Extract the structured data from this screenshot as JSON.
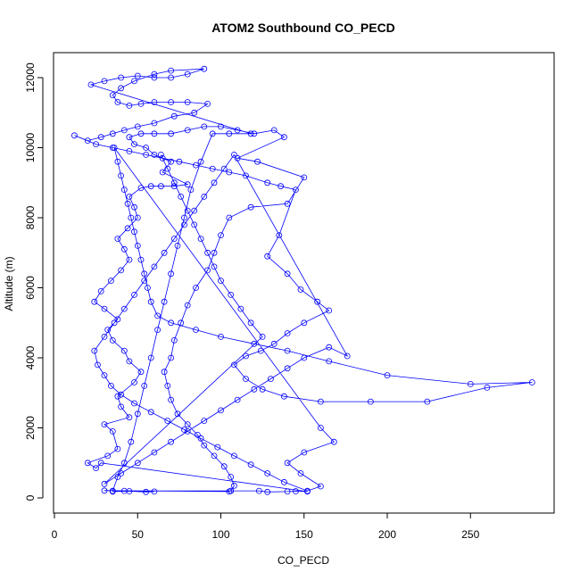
{
  "chart_data": {
    "type": "line",
    "title": "ATOM2 Southbound CO_PECD",
    "xlabel": "CO_PECD",
    "ylabel": "Altitude (m)",
    "xlim": [
      0,
      300
    ],
    "ylim": [
      0,
      12500
    ],
    "xticks": [
      0,
      50,
      100,
      150,
      200,
      250
    ],
    "yticks": [
      0,
      2000,
      4000,
      6000,
      8000,
      10000,
      12000
    ],
    "grid": false,
    "legend": "none",
    "series_color": "#0000ff",
    "points": [
      [
        35,
        180
      ],
      [
        45,
        190
      ],
      [
        60,
        180
      ],
      [
        55,
        170
      ],
      [
        42,
        200
      ],
      [
        30,
        210
      ],
      [
        105,
        180
      ],
      [
        106,
        200
      ],
      [
        123,
        200
      ],
      [
        128,
        170
      ],
      [
        140,
        180
      ],
      [
        145,
        190
      ],
      [
        152,
        180
      ],
      [
        28,
        1000
      ],
      [
        25,
        850
      ],
      [
        20,
        1000
      ],
      [
        32,
        1200
      ],
      [
        38,
        1400
      ],
      [
        35,
        1900
      ],
      [
        30,
        2100
      ],
      [
        45,
        2300
      ],
      [
        40,
        2600
      ],
      [
        38,
        2900
      ],
      [
        48,
        3300
      ],
      [
        52,
        3600
      ],
      [
        45,
        3900
      ],
      [
        42,
        4200
      ],
      [
        35,
        4500
      ],
      [
        32,
        4800
      ],
      [
        38,
        5100
      ],
      [
        30,
        5400
      ],
      [
        24,
        5600
      ],
      [
        28,
        5900
      ],
      [
        34,
        6200
      ],
      [
        40,
        6500
      ],
      [
        45,
        6800
      ],
      [
        42,
        7100
      ],
      [
        38,
        7400
      ],
      [
        44,
        7700
      ],
      [
        50,
        8000
      ],
      [
        48,
        8300
      ],
      [
        45,
        8600
      ],
      [
        52,
        8850
      ],
      [
        58,
        8900
      ],
      [
        64,
        8900
      ],
      [
        72,
        8900
      ],
      [
        80,
        8950
      ],
      [
        65,
        9300
      ],
      [
        70,
        9600
      ],
      [
        60,
        9800
      ],
      [
        55,
        10000
      ],
      [
        48,
        10100
      ],
      [
        45,
        10300
      ],
      [
        52,
        10400
      ],
      [
        60,
        10400
      ],
      [
        70,
        10400
      ],
      [
        80,
        10500
      ],
      [
        90,
        10600
      ],
      [
        100,
        10600
      ],
      [
        110,
        10500
      ],
      [
        120,
        10400
      ],
      [
        132,
        10500
      ],
      [
        138,
        10300
      ],
      [
        110,
        9700
      ],
      [
        122,
        9600
      ],
      [
        150,
        9150
      ],
      [
        140,
        8400
      ],
      [
        118,
        8300
      ],
      [
        105,
        8000
      ],
      [
        100,
        7500
      ],
      [
        96,
        7000
      ],
      [
        92,
        6500
      ],
      [
        85,
        6000
      ],
      [
        80,
        5500
      ],
      [
        76,
        5000
      ],
      [
        72,
        4500
      ],
      [
        70,
        4000
      ],
      [
        66,
        3600
      ],
      [
        68,
        3200
      ],
      [
        70,
        2800
      ],
      [
        74,
        2400
      ],
      [
        80,
        2100
      ],
      [
        86,
        1800
      ],
      [
        90,
        1500
      ],
      [
        96,
        1200
      ],
      [
        102,
        900
      ],
      [
        106,
        600
      ],
      [
        108,
        350
      ],
      [
        106,
        200
      ],
      [
        35,
        200
      ],
      [
        38,
        600
      ],
      [
        42,
        1000
      ],
      [
        46,
        1600
      ],
      [
        50,
        2400
      ],
      [
        54,
        3200
      ],
      [
        58,
        4000
      ],
      [
        62,
        4800
      ],
      [
        66,
        5600
      ],
      [
        70,
        6400
      ],
      [
        74,
        7200
      ],
      [
        78,
        8000
      ],
      [
        82,
        8800
      ],
      [
        88,
        9600
      ],
      [
        95,
        10400
      ],
      [
        105,
        10400
      ],
      [
        118,
        10400
      ],
      [
        22,
        11800
      ],
      [
        30,
        11900
      ],
      [
        40,
        12000
      ],
      [
        50,
        12050
      ],
      [
        60,
        12000
      ],
      [
        70,
        12000
      ],
      [
        80,
        12100
      ],
      [
        90,
        12250
      ],
      [
        70,
        12200
      ],
      [
        60,
        12100
      ],
      [
        48,
        11900
      ],
      [
        40,
        11700
      ],
      [
        35,
        11500
      ],
      [
        38,
        11300
      ],
      [
        45,
        11200
      ],
      [
        52,
        11250
      ],
      [
        60,
        11300
      ],
      [
        70,
        11300
      ],
      [
        80,
        11300
      ],
      [
        92,
        11250
      ],
      [
        84,
        11000
      ],
      [
        72,
        10900
      ],
      [
        60,
        10700
      ],
      [
        50,
        10600
      ],
      [
        42,
        10500
      ],
      [
        35,
        10400
      ],
      [
        28,
        10300
      ],
      [
        20,
        10200
      ],
      [
        12,
        10350
      ],
      [
        25,
        10100
      ],
      [
        35,
        10000
      ],
      [
        45,
        9900
      ],
      [
        55,
        9800
      ],
      [
        65,
        9700
      ],
      [
        75,
        9600
      ],
      [
        85,
        9500
      ],
      [
        95,
        9400
      ],
      [
        105,
        9300
      ],
      [
        115,
        9200
      ],
      [
        128,
        9000
      ],
      [
        136,
        8900
      ],
      [
        145,
        8800
      ],
      [
        135,
        7500
      ],
      [
        128,
        6900
      ],
      [
        140,
        6400
      ],
      [
        148,
        5950
      ],
      [
        158,
        5600
      ],
      [
        165,
        5350
      ],
      [
        150,
        5000
      ],
      [
        140,
        4700
      ],
      [
        132,
        4400
      ],
      [
        124,
        4200
      ],
      [
        115,
        4050
      ],
      [
        108,
        3800
      ],
      [
        115,
        3400
      ],
      [
        125,
        3100
      ],
      [
        138,
        2900
      ],
      [
        160,
        2750
      ],
      [
        190,
        2750
      ],
      [
        224,
        2750
      ],
      [
        260,
        3150
      ],
      [
        287,
        3300
      ],
      [
        250,
        3250
      ],
      [
        200,
        3500
      ],
      [
        165,
        3900
      ],
      [
        140,
        4200
      ],
      [
        120,
        4400
      ],
      [
        100,
        4600
      ],
      [
        85,
        4800
      ],
      [
        70,
        5000
      ],
      [
        62,
        5200
      ],
      [
        58,
        5600
      ],
      [
        56,
        6000
      ],
      [
        54,
        6400
      ],
      [
        52,
        6800
      ],
      [
        50,
        7200
      ],
      [
        48,
        7600
      ],
      [
        46,
        8000
      ],
      [
        44,
        8400
      ],
      [
        42,
        8800
      ],
      [
        40,
        9200
      ],
      [
        38,
        9600
      ],
      [
        36,
        10000
      ],
      [
        160,
        2000
      ],
      [
        168,
        1600
      ],
      [
        150,
        1300
      ],
      [
        140,
        1000
      ],
      [
        148,
        700
      ],
      [
        160,
        330
      ],
      [
        152,
        200
      ],
      [
        138,
        450
      ],
      [
        128,
        700
      ],
      [
        118,
        950
      ],
      [
        108,
        1200
      ],
      [
        98,
        1450
      ],
      [
        88,
        1700
      ],
      [
        78,
        1950
      ],
      [
        68,
        2200
      ],
      [
        58,
        2450
      ],
      [
        48,
        2700
      ],
      [
        40,
        2950
      ],
      [
        34,
        3200
      ],
      [
        30,
        3500
      ],
      [
        26,
        3800
      ],
      [
        24,
        4200
      ],
      [
        30,
        4600
      ],
      [
        36,
        5000
      ],
      [
        42,
        5400
      ],
      [
        48,
        5800
      ],
      [
        54,
        6200
      ],
      [
        60,
        6600
      ],
      [
        66,
        7000
      ],
      [
        72,
        7400
      ],
      [
        78,
        7800
      ],
      [
        84,
        8200
      ],
      [
        90,
        8600
      ],
      [
        96,
        9000
      ],
      [
        102,
        9400
      ],
      [
        108,
        9800
      ],
      [
        176,
        4050
      ],
      [
        165,
        4300
      ],
      [
        150,
        4000
      ],
      [
        140,
        3700
      ],
      [
        130,
        3400
      ],
      [
        120,
        3100
      ],
      [
        110,
        2800
      ],
      [
        100,
        2500
      ],
      [
        90,
        2200
      ],
      [
        80,
        1900
      ],
      [
        70,
        1600
      ],
      [
        60,
        1300
      ],
      [
        50,
        1000
      ],
      [
        40,
        700
      ],
      [
        30,
        400
      ],
      [
        125,
        4600
      ],
      [
        118,
        5000
      ],
      [
        112,
        5400
      ],
      [
        106,
        5800
      ],
      [
        100,
        6200
      ],
      [
        96,
        6600
      ],
      [
        92,
        7000
      ],
      [
        88,
        7400
      ],
      [
        84,
        7800
      ],
      [
        80,
        8200
      ],
      [
        76,
        8600
      ],
      [
        72,
        9000
      ],
      [
        68,
        9400
      ],
      [
        64,
        9800
      ]
    ]
  }
}
